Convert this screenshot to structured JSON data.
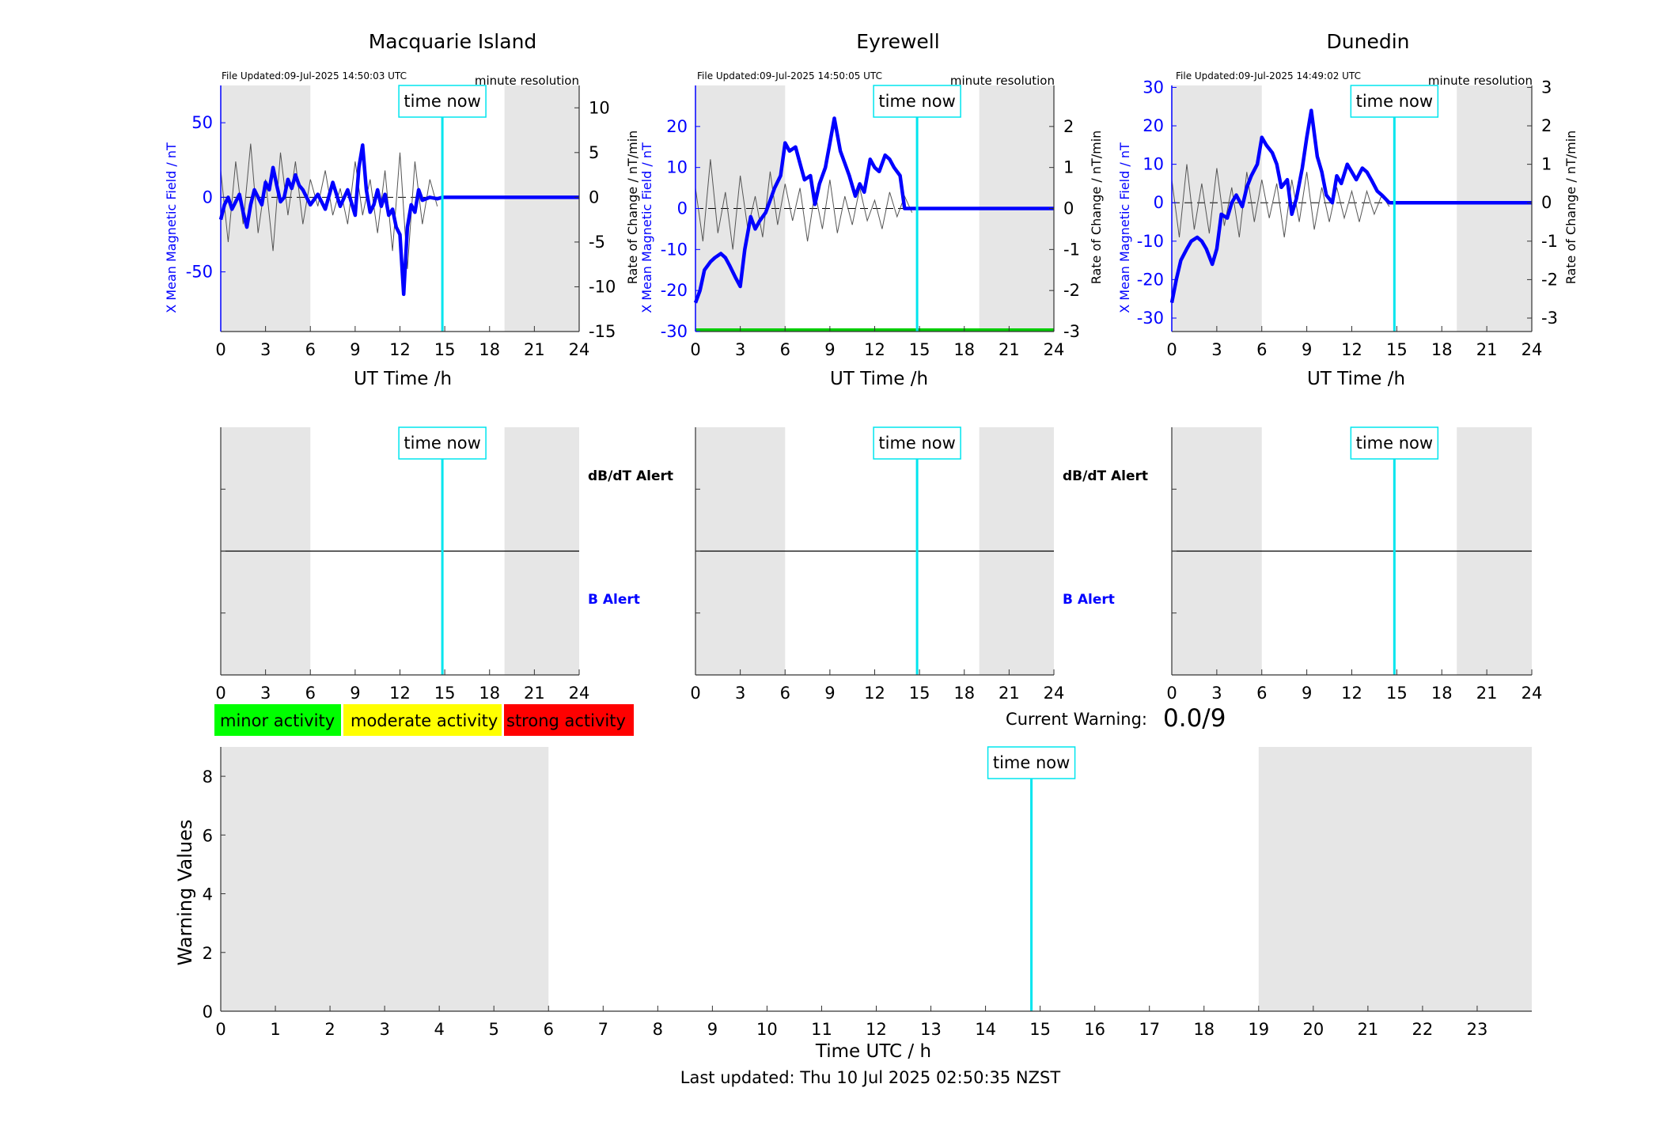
{
  "colors": {
    "field": "#0000ff",
    "roc": "#222222",
    "time_now": "#00e5ee",
    "shade": "#e6e6e6",
    "minor": "#00ff00",
    "moderate": "#ffff00",
    "strong": "#ff0000",
    "alert_line": "#00cc00"
  },
  "time_now_label": "time now",
  "resolution_label": "minute resolution",
  "field_x_label": "UT Time /h",
  "left_ylabel": "X Mean Magnetic Field / nT",
  "right_ylabel": "Rate of Change / nT/min",
  "alert_labels": {
    "dbdt": "dB/dT Alert",
    "b": "B Alert"
  },
  "legend": {
    "minor": "minor activity",
    "moderate": "moderate activity",
    "strong": "strong activity"
  },
  "current_warning": {
    "label": "Current Warning:",
    "value": "0.0/9"
  },
  "last_updated": "Last updated: Thu 10 Jul 2025 02:50:35 NZST",
  "chart_data": [
    {
      "type": "line",
      "title": "Macquarie Island",
      "file_updated": "File Updated:09-Jul-2025 14:50:03 UTC",
      "xlabel": "UT Time /h",
      "ylabel": "X Mean Magnetic Field / nT",
      "y2label": "Rate of Change / nT/min",
      "xlim": [
        0,
        24
      ],
      "xticks": [
        0,
        3,
        6,
        9,
        12,
        15,
        18,
        21,
        24
      ],
      "ylim": [
        -90,
        75
      ],
      "yticks": [
        -50,
        0,
        50
      ],
      "y2lim": [
        -15,
        12.5
      ],
      "y2ticks": [
        -15,
        -10,
        -5,
        0,
        5,
        10
      ],
      "shaded_hours": [
        [
          0,
          6
        ],
        [
          19,
          24
        ]
      ],
      "time_now": 14.84,
      "show_alert_line": false,
      "series": [
        {
          "axis": "left",
          "x": [
            0,
            0.25,
            0.5,
            0.75,
            1,
            1.25,
            1.5,
            1.75,
            2,
            2.25,
            2.5,
            2.75,
            3,
            3.25,
            3.5,
            3.75,
            4,
            4.25,
            4.5,
            4.75,
            5,
            5.25,
            5.5,
            5.75,
            6,
            6.5,
            7,
            7.5,
            8,
            8.5,
            9,
            9.25,
            9.5,
            9.75,
            10,
            10.25,
            10.5,
            10.75,
            11,
            11.25,
            11.5,
            11.75,
            12,
            12.25,
            12.5,
            12.75,
            13,
            13.25,
            13.5,
            14,
            14.5,
            14.84,
            15,
            18,
            21,
            24
          ],
          "y": [
            -15,
            -5,
            0,
            -8,
            -3,
            2,
            -10,
            -20,
            -5,
            5,
            0,
            -5,
            10,
            5,
            20,
            8,
            -3,
            0,
            12,
            6,
            15,
            8,
            5,
            0,
            -5,
            2,
            -8,
            10,
            -6,
            5,
            -12,
            20,
            35,
            5,
            -10,
            -5,
            5,
            -6,
            2,
            -12,
            -8,
            -20,
            -25,
            -65,
            -20,
            -5,
            -10,
            5,
            -2,
            0,
            -1,
            0,
            0,
            0,
            0,
            0
          ]
        },
        {
          "axis": "right",
          "x": [
            0,
            0.5,
            1,
            1.5,
            2,
            2.5,
            3,
            3.5,
            4,
            4.5,
            5,
            5.5,
            6,
            6.5,
            7,
            7.5,
            8,
            8.5,
            9,
            9.5,
            10,
            10.5,
            11,
            11.5,
            12,
            12.5,
            13,
            13.5,
            14,
            14.5
          ],
          "y": [
            3,
            -5,
            4,
            -3,
            6,
            -4,
            2,
            -6,
            5,
            -2,
            4,
            -3,
            2,
            -1,
            3,
            -2,
            1,
            -3,
            4,
            -2,
            2,
            -4,
            3,
            -6,
            5,
            -8,
            4,
            -3,
            2,
            -1
          ]
        }
      ]
    },
    {
      "type": "line",
      "title": "Eyrewell",
      "file_updated": "File Updated:09-Jul-2025 14:50:05 UTC",
      "xlabel": "UT Time /h",
      "ylabel": "X Mean Magnetic Field / nT",
      "y2label": "Rate of Change / nT/min",
      "xlim": [
        0,
        24
      ],
      "xticks": [
        0,
        3,
        6,
        9,
        12,
        15,
        18,
        21,
        24
      ],
      "ylim": [
        -30,
        30
      ],
      "yticks": [
        -30,
        -20,
        -10,
        0,
        10,
        20
      ],
      "y2lim": [
        -3,
        3
      ],
      "y2ticks": [
        -3,
        -2,
        -1,
        0,
        1,
        2
      ],
      "shaded_hours": [
        [
          0,
          6
        ],
        [
          19,
          24
        ]
      ],
      "time_now": 14.84,
      "show_alert_line": true,
      "series": [
        {
          "axis": "left",
          "x": [
            0,
            0.3,
            0.6,
            1,
            1.3,
            1.7,
            2,
            2.3,
            2.7,
            3,
            3.3,
            3.7,
            4,
            4.3,
            4.7,
            5,
            5.3,
            5.7,
            6,
            6.3,
            6.7,
            7,
            7.3,
            7.7,
            8,
            8.3,
            8.7,
            9,
            9.3,
            9.7,
            10,
            10.3,
            10.7,
            11,
            11.3,
            11.7,
            12,
            12.3,
            12.7,
            13,
            13.3,
            13.7,
            14,
            14.84,
            15,
            18,
            21,
            24
          ],
          "y": [
            -23,
            -20,
            -15,
            -13,
            -12,
            -11,
            -12,
            -14,
            -17,
            -19,
            -10,
            -2,
            -5,
            -3,
            -1,
            2,
            5,
            8,
            16,
            14,
            15,
            11,
            7,
            8,
            1,
            6,
            10,
            16,
            22,
            14,
            11,
            8,
            3,
            6,
            4,
            12,
            10,
            9,
            13,
            12,
            10,
            8,
            0,
            0,
            0,
            0,
            0,
            0
          ]
        },
        {
          "axis": "right",
          "x": [
            0,
            0.5,
            1,
            1.5,
            2,
            2.5,
            3,
            3.5,
            4,
            4.5,
            5,
            5.5,
            6,
            6.5,
            7,
            7.5,
            8,
            8.5,
            9,
            9.5,
            10,
            10.5,
            11,
            11.5,
            12,
            12.5,
            13,
            13.5,
            14,
            14.5
          ],
          "y": [
            0.5,
            -0.8,
            1.2,
            -0.6,
            0.4,
            -1,
            0.8,
            -0.5,
            0.3,
            -0.7,
            0.9,
            -0.4,
            0.6,
            -0.3,
            0.5,
            -0.8,
            0.4,
            -0.5,
            0.7,
            -0.6,
            0.3,
            -0.4,
            0.5,
            -0.3,
            0.2,
            -0.5,
            0.4,
            -0.2,
            0.3,
            -0.1
          ]
        }
      ]
    },
    {
      "type": "line",
      "title": "Dunedin",
      "file_updated": "File Updated:09-Jul-2025 14:49:02 UTC",
      "xlabel": "UT Time /h",
      "ylabel": "X Mean Magnetic Field / nT",
      "y2label": "Rate of Change / nT/min",
      "xlim": [
        0,
        24
      ],
      "xticks": [
        0,
        3,
        6,
        9,
        12,
        15,
        18,
        21,
        24
      ],
      "ylim": [
        -33.5,
        30.5
      ],
      "yticks": [
        -30,
        -20,
        -10,
        0,
        10,
        20,
        30
      ],
      "y2lim": [
        -3.35,
        3.05
      ],
      "y2ticks": [
        -3,
        -2,
        -1,
        0,
        1,
        2,
        3
      ],
      "shaded_hours": [
        [
          0,
          6
        ],
        [
          19,
          24
        ]
      ],
      "time_now": 14.84,
      "show_alert_line": false,
      "series": [
        {
          "axis": "left",
          "x": [
            0,
            0.3,
            0.6,
            1,
            1.3,
            1.7,
            2,
            2.3,
            2.7,
            3,
            3.3,
            3.7,
            4,
            4.3,
            4.7,
            5,
            5.3,
            5.7,
            6,
            6.3,
            6.7,
            7,
            7.3,
            7.7,
            8,
            8.3,
            8.7,
            9,
            9.3,
            9.7,
            10,
            10.3,
            10.7,
            11,
            11.3,
            11.7,
            12,
            12.3,
            12.7,
            13,
            13.3,
            13.7,
            14,
            14.5,
            15,
            18,
            21,
            24
          ],
          "y": [
            -26,
            -20,
            -15,
            -12,
            -10,
            -9,
            -10,
            -12,
            -16,
            -12,
            -3,
            -4,
            0,
            2,
            -1,
            4,
            7,
            10,
            17,
            15,
            13,
            10,
            4,
            6,
            -3,
            1,
            9,
            17,
            24,
            12,
            8,
            2,
            0,
            7,
            5,
            10,
            8,
            6,
            9,
            8,
            6,
            3,
            2,
            0,
            0,
            0,
            0,
            0
          ]
        },
        {
          "axis": "right",
          "x": [
            0,
            0.5,
            1,
            1.5,
            2,
            2.5,
            3,
            3.5,
            4,
            4.5,
            5,
            5.5,
            6,
            6.5,
            7,
            7.5,
            8,
            8.5,
            9,
            9.5,
            10,
            10.5,
            11,
            11.5,
            12,
            12.5,
            13,
            13.5,
            14,
            14.5
          ],
          "y": [
            0.6,
            -0.9,
            1,
            -0.7,
            0.5,
            -0.8,
            0.9,
            -0.6,
            0.4,
            -0.9,
            0.8,
            -0.5,
            0.6,
            -0.4,
            0.5,
            -0.9,
            0.6,
            -0.5,
            0.8,
            -0.7,
            0.4,
            -0.5,
            0.4,
            -0.4,
            0.3,
            -0.5,
            0.3,
            -0.3,
            0.2,
            -0.1
          ]
        }
      ]
    },
    {
      "type": "line",
      "title": "",
      "xlabel": "Time UTC / h",
      "ylabel": "Warning Values",
      "xlim": [
        0,
        24
      ],
      "xticks": [
        0,
        1,
        2,
        3,
        4,
        5,
        6,
        7,
        8,
        9,
        10,
        11,
        12,
        13,
        14,
        15,
        16,
        17,
        18,
        19,
        20,
        21,
        22,
        23
      ],
      "ylim": [
        0,
        9
      ],
      "yticks": [
        0,
        2,
        4,
        6,
        8
      ],
      "shaded_hours": [
        [
          0,
          6
        ],
        [
          19,
          24
        ]
      ],
      "time_now": 14.84,
      "series": [
        {
          "x": [],
          "y": []
        }
      ]
    }
  ]
}
